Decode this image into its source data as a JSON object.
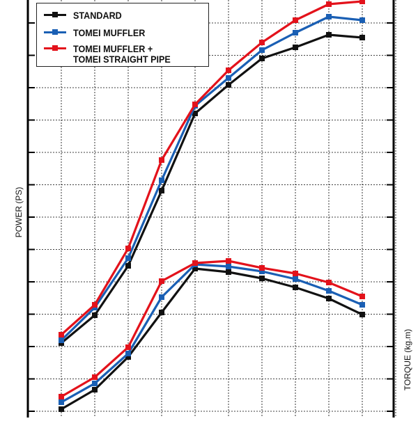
{
  "chart_data": {
    "type": "line",
    "title": "",
    "xlabel": "",
    "ylabel": "POWER (PS)",
    "y2label": "TORQUE (kg.m)",
    "grid": true,
    "x": [
      1,
      2,
      3,
      4,
      5,
      6,
      7,
      8,
      9,
      10
    ],
    "ylim": [
      0,
      600
    ],
    "colors": {
      "STANDARD": "#111111",
      "TOMEI MUFFLER": "#1a5fb4",
      "TOMEI MUFFLER + TOMEI STRAIGHT PIPE": "#e3121b"
    },
    "series": [
      {
        "name": "STANDARD",
        "group": "power",
        "values": [
          107,
          147,
          218,
          326,
          437,
          478,
          516,
          532,
          550,
          546
        ]
      },
      {
        "name": "TOMEI MUFFLER",
        "group": "power",
        "values": [
          111,
          158,
          229,
          341,
          448,
          488,
          528,
          553,
          576,
          571
        ]
      },
      {
        "name": "TOMEI MUFFLER + TOMEI STRAIGHT PIPE",
        "group": "power",
        "values": [
          119,
          162,
          243,
          370,
          450,
          499,
          539,
          571,
          594,
          598
        ]
      },
      {
        "name": "STANDARD",
        "group": "torque",
        "values": [
          12,
          40,
          87,
          151,
          214,
          209,
          200,
          187,
          171,
          148
        ]
      },
      {
        "name": "TOMEI MUFFLER",
        "group": "torque",
        "values": [
          22,
          49,
          92,
          173,
          220,
          217,
          210,
          199,
          182,
          162
        ]
      },
      {
        "name": "TOMEI MUFFLER + TOMEI STRAIGHT PIPE",
        "group": "torque",
        "values": [
          30,
          58,
          101,
          196,
          222,
          225,
          215,
          207,
          194,
          174
        ]
      }
    ],
    "legend": {
      "position": "top-left",
      "entries": [
        "STANDARD",
        "TOMEI MUFFLER",
        "TOMEI MUFFLER + TOMEI STRAIGHT PIPE"
      ],
      "lines": [
        [
          "STANDARD"
        ],
        [
          "TOMEI MUFFLER"
        ],
        [
          "TOMEI MUFFLER +",
          "TOMEI STRAIGHT PIPE"
        ]
      ]
    }
  }
}
